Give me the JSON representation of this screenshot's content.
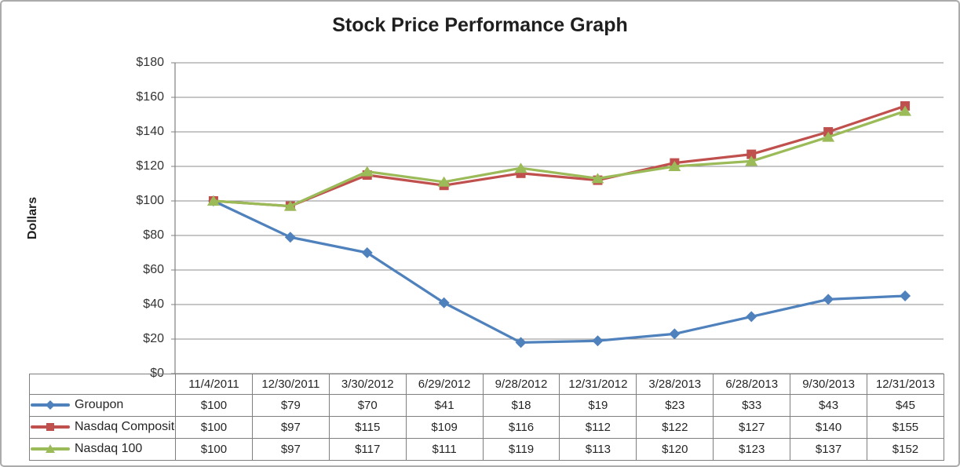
{
  "frame": {
    "background": "#FFFFFF",
    "border_color": "#ABABAB"
  },
  "chart_data": {
    "type": "line",
    "title": "Stock Price Performance Graph",
    "xlabel": "",
    "ylabel": "Dollars",
    "categories": [
      "11/4/2011",
      "12/30/2011",
      "3/30/2012",
      "6/29/2012",
      "9/28/2012",
      "12/31/2012",
      "3/28/2013",
      "6/28/2013",
      "9/30/2013",
      "12/31/2013"
    ],
    "series": [
      {
        "name": "Groupon",
        "marker": "diamond",
        "color": "#4F81BD",
        "values": [
          100,
          79,
          70,
          41,
          18,
          19,
          23,
          33,
          43,
          45
        ]
      },
      {
        "name": "Nasdaq Composite",
        "marker": "square",
        "color": "#C0504D",
        "values": [
          100,
          97,
          115,
          109,
          116,
          112,
          122,
          127,
          140,
          155
        ]
      },
      {
        "name": "Nasdaq 100",
        "marker": "triangle",
        "color": "#9BBB59",
        "values": [
          100,
          97,
          117,
          111,
          119,
          113,
          120,
          123,
          137,
          152
        ]
      }
    ],
    "ylim": [
      0,
      180
    ],
    "ytick_step": 20,
    "ytick_labels": [
      "$0",
      "$20",
      "$40",
      "$60",
      "$80",
      "$100",
      "$120",
      "$140",
      "$160",
      "$180"
    ],
    "value_prefix": "$",
    "grid": true,
    "legend_position": "table-left",
    "colors": {
      "gridline": "#8C8C8C",
      "axis": "#808080",
      "table_border": "#7F7F7F",
      "text": "#262626",
      "title_text": "#1F1F1F"
    }
  }
}
